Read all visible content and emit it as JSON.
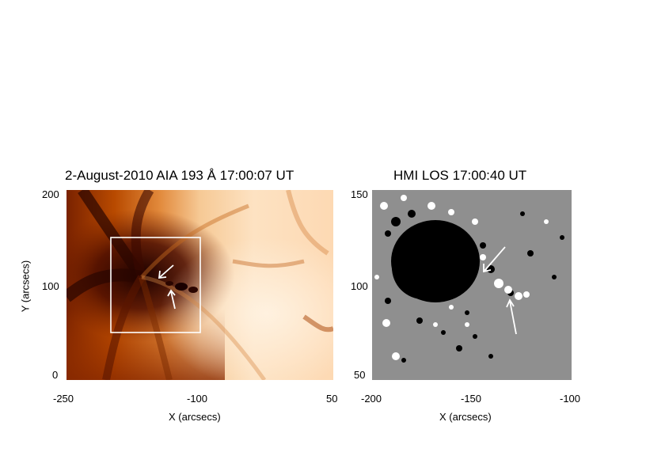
{
  "left_panel": {
    "title": "2-August-2010 AIA 193 Å 17:00:07 UT",
    "xlabel": "X (arcsecs)",
    "ylabel": "Y (arcsecs)",
    "x_ticks": [
      "-250",
      "-100",
      "50"
    ],
    "y_ticks": [
      "200",
      "100",
      "0"
    ],
    "x_range": [
      -250,
      50
    ],
    "y_range": [
      0,
      200
    ],
    "colormap": "sdoaia193",
    "annotations": {
      "box": {
        "x": [
          -232,
          -104
        ],
        "y": [
          52,
          153
        ]
      },
      "arrows": 2,
      "arrow_color": "#ffffff"
    }
  },
  "right_panel": {
    "title": "HMI LOS 17:00:40 UT",
    "xlabel": "X (arcsecs)",
    "x_ticks": [
      "-200",
      "-150",
      "-100"
    ],
    "y_ticks": [
      "150",
      "100",
      "50"
    ],
    "x_range": [
      -200,
      -100
    ],
    "y_range": [
      50,
      150
    ],
    "colormap": "gray",
    "annotations": {
      "arrows": 2,
      "arrow_color": "#ffffff"
    }
  }
}
